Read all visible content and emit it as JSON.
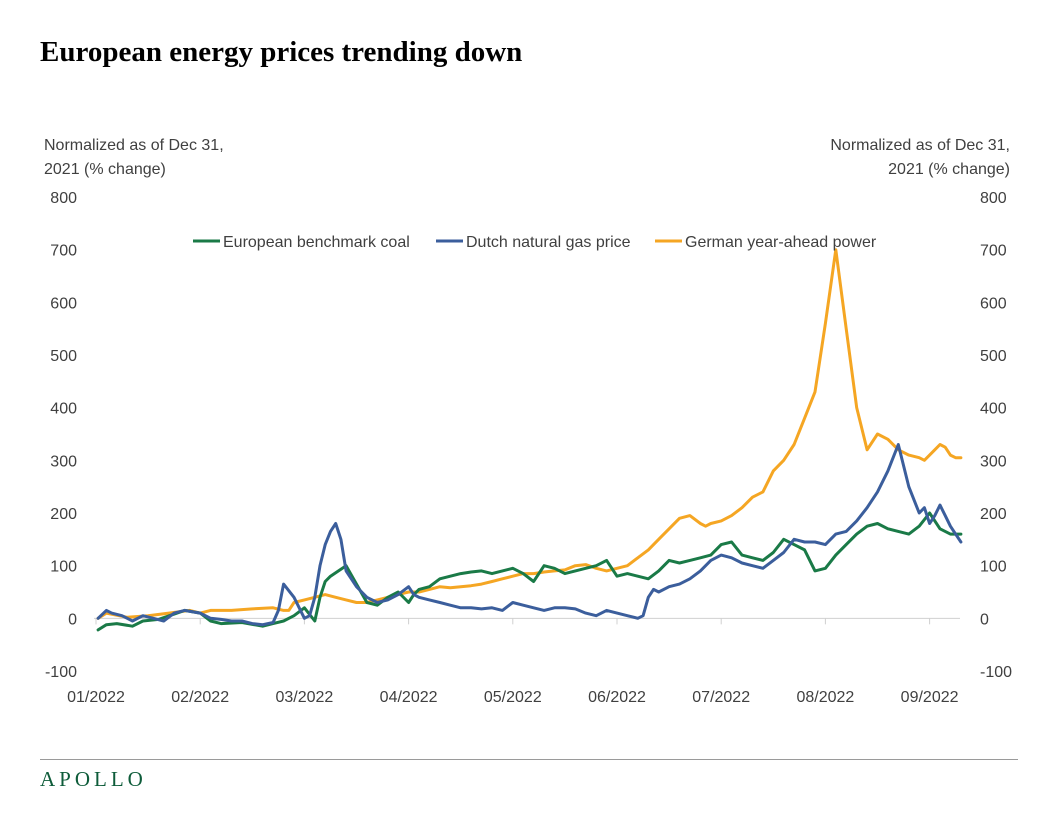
{
  "header": {
    "title": "European energy prices trending down"
  },
  "brand": {
    "logo_text": "APOLLO",
    "logo_color": "#0e5c3a"
  },
  "chart_data": {
    "type": "line",
    "title": "European energy prices trending down",
    "ylabel_left": "Normalized as of Dec 31, 2021 (% change)",
    "ylabel_right": "Normalized as of Dec 31, 2021 (% change)",
    "ylim": [
      -100,
      800
    ],
    "yticks": [
      "-100",
      "0",
      "100",
      "200",
      "300",
      "400",
      "500",
      "600",
      "700",
      "800"
    ],
    "ytick_values": [
      -100,
      0,
      100,
      200,
      300,
      400,
      500,
      600,
      700,
      800
    ],
    "xlim": [
      0,
      8.35
    ],
    "x_tick_values": [
      0,
      1,
      2,
      3,
      4,
      5,
      6,
      7,
      8
    ],
    "x_tick_labels": [
      "01/2022",
      "02/2022",
      "03/2022",
      "04/2022",
      "05/2022",
      "06/2022",
      "07/2022",
      "08/2022",
      "09/2022"
    ],
    "grid": false,
    "legend_position": "top-center",
    "series": [
      {
        "name": "European benchmark coal",
        "color": "#1a7a47",
        "x": [
          0.02,
          0.1,
          0.2,
          0.35,
          0.45,
          0.6,
          0.75,
          0.85,
          1.0,
          1.1,
          1.2,
          1.4,
          1.6,
          1.7,
          1.8,
          1.9,
          2.0,
          2.1,
          2.15,
          2.2,
          2.25,
          2.4,
          2.5,
          2.6,
          2.7,
          2.8,
          2.9,
          3.0,
          3.05,
          3.1,
          3.2,
          3.3,
          3.4,
          3.5,
          3.6,
          3.7,
          3.8,
          3.9,
          4.0,
          4.1,
          4.2,
          4.3,
          4.4,
          4.5,
          4.6,
          4.7,
          4.8,
          4.9,
          5.0,
          5.1,
          5.2,
          5.3,
          5.4,
          5.5,
          5.6,
          5.7,
          5.8,
          5.9,
          6.0,
          6.1,
          6.2,
          6.3,
          6.4,
          6.5,
          6.6,
          6.7,
          6.8,
          6.9,
          7.0,
          7.1,
          7.2,
          7.3,
          7.4,
          7.5,
          7.6,
          7.7,
          7.8,
          7.9,
          8.0,
          8.1,
          8.2,
          8.3
        ],
        "y": [
          -22,
          -12,
          -10,
          -15,
          -5,
          -2,
          8,
          15,
          10,
          -5,
          -10,
          -8,
          -15,
          -10,
          -5,
          5,
          20,
          -5,
          40,
          70,
          80,
          100,
          65,
          30,
          25,
          40,
          50,
          30,
          45,
          55,
          60,
          75,
          80,
          85,
          88,
          90,
          85,
          90,
          95,
          85,
          70,
          100,
          95,
          85,
          90,
          95,
          100,
          110,
          80,
          85,
          80,
          75,
          90,
          110,
          105,
          110,
          115,
          120,
          140,
          145,
          120,
          115,
          110,
          125,
          150,
          140,
          130,
          90,
          95,
          120,
          140,
          160,
          175,
          180,
          170,
          165,
          160,
          175,
          200,
          170,
          160,
          160
        ]
      },
      {
        "name": "Dutch natural gas price",
        "color": "#3b5e9c",
        "x": [
          0.02,
          0.1,
          0.15,
          0.25,
          0.35,
          0.45,
          0.55,
          0.65,
          0.75,
          0.85,
          1.0,
          1.1,
          1.2,
          1.3,
          1.4,
          1.5,
          1.6,
          1.7,
          1.75,
          1.8,
          1.9,
          2.0,
          2.05,
          2.1,
          2.15,
          2.2,
          2.25,
          2.3,
          2.35,
          2.4,
          2.45,
          2.5,
          2.55,
          2.6,
          2.7,
          2.8,
          2.9,
          3.0,
          3.05,
          3.1,
          3.2,
          3.3,
          3.4,
          3.5,
          3.6,
          3.7,
          3.8,
          3.9,
          4.0,
          4.1,
          4.2,
          4.3,
          4.4,
          4.5,
          4.6,
          4.7,
          4.8,
          4.9,
          5.0,
          5.1,
          5.2,
          5.25,
          5.3,
          5.35,
          5.4,
          5.5,
          5.6,
          5.7,
          5.8,
          5.9,
          6.0,
          6.1,
          6.2,
          6.3,
          6.4,
          6.5,
          6.6,
          6.7,
          6.8,
          6.9,
          7.0,
          7.1,
          7.2,
          7.3,
          7.4,
          7.5,
          7.6,
          7.7,
          7.8,
          7.9,
          7.95,
          8.0,
          8.05,
          8.1,
          8.15,
          8.2,
          8.25,
          8.3
        ],
        "y": [
          0,
          15,
          10,
          5,
          -5,
          5,
          0,
          -5,
          10,
          15,
          10,
          0,
          -2,
          -5,
          -5,
          -10,
          -12,
          -8,
          15,
          65,
          40,
          0,
          5,
          40,
          100,
          140,
          165,
          180,
          150,
          90,
          75,
          60,
          50,
          40,
          30,
          35,
          45,
          60,
          45,
          40,
          35,
          30,
          25,
          20,
          20,
          18,
          20,
          15,
          30,
          25,
          20,
          15,
          20,
          20,
          18,
          10,
          5,
          15,
          10,
          5,
          0,
          5,
          40,
          55,
          50,
          60,
          65,
          75,
          90,
          110,
          120,
          115,
          105,
          100,
          95,
          110,
          125,
          150,
          145,
          145,
          140,
          160,
          165,
          185,
          210,
          240,
          280,
          330,
          250,
          200,
          210,
          180,
          195,
          215,
          195,
          175,
          160,
          145
        ]
      },
      {
        "name": "German year-ahead power",
        "color": "#f5a623",
        "x": [
          0.02,
          0.1,
          0.3,
          0.5,
          0.7,
          0.9,
          1.0,
          1.1,
          1.3,
          1.5,
          1.7,
          1.8,
          1.85,
          1.9,
          2.0,
          2.1,
          2.2,
          2.3,
          2.4,
          2.5,
          2.6,
          2.7,
          2.8,
          2.9,
          3.0,
          3.1,
          3.2,
          3.3,
          3.4,
          3.5,
          3.6,
          3.7,
          3.8,
          3.9,
          4.0,
          4.1,
          4.2,
          4.3,
          4.4,
          4.5,
          4.6,
          4.7,
          4.8,
          4.9,
          5.0,
          5.1,
          5.2,
          5.3,
          5.4,
          5.5,
          5.6,
          5.7,
          5.8,
          5.85,
          5.9,
          6.0,
          6.1,
          6.2,
          6.3,
          6.4,
          6.5,
          6.6,
          6.7,
          6.8,
          6.9,
          7.0,
          7.1,
          7.2,
          7.3,
          7.4,
          7.5,
          7.6,
          7.7,
          7.8,
          7.9,
          7.95,
          8.0,
          8.05,
          8.1,
          8.15,
          8.2,
          8.25,
          8.3
        ],
        "y": [
          0,
          10,
          2,
          5,
          10,
          15,
          10,
          15,
          15,
          18,
          20,
          15,
          15,
          30,
          35,
          40,
          45,
          40,
          35,
          30,
          30,
          35,
          40,
          45,
          50,
          50,
          55,
          60,
          58,
          60,
          62,
          65,
          70,
          75,
          80,
          85,
          85,
          88,
          90,
          92,
          100,
          102,
          95,
          90,
          95,
          100,
          115,
          130,
          150,
          170,
          190,
          195,
          180,
          175,
          180,
          185,
          195,
          210,
          230,
          240,
          280,
          300,
          330,
          380,
          430,
          560,
          700,
          550,
          400,
          320,
          350,
          340,
          320,
          310,
          305,
          300,
          310,
          320,
          330,
          325,
          310,
          305,
          305
        ]
      }
    ]
  }
}
